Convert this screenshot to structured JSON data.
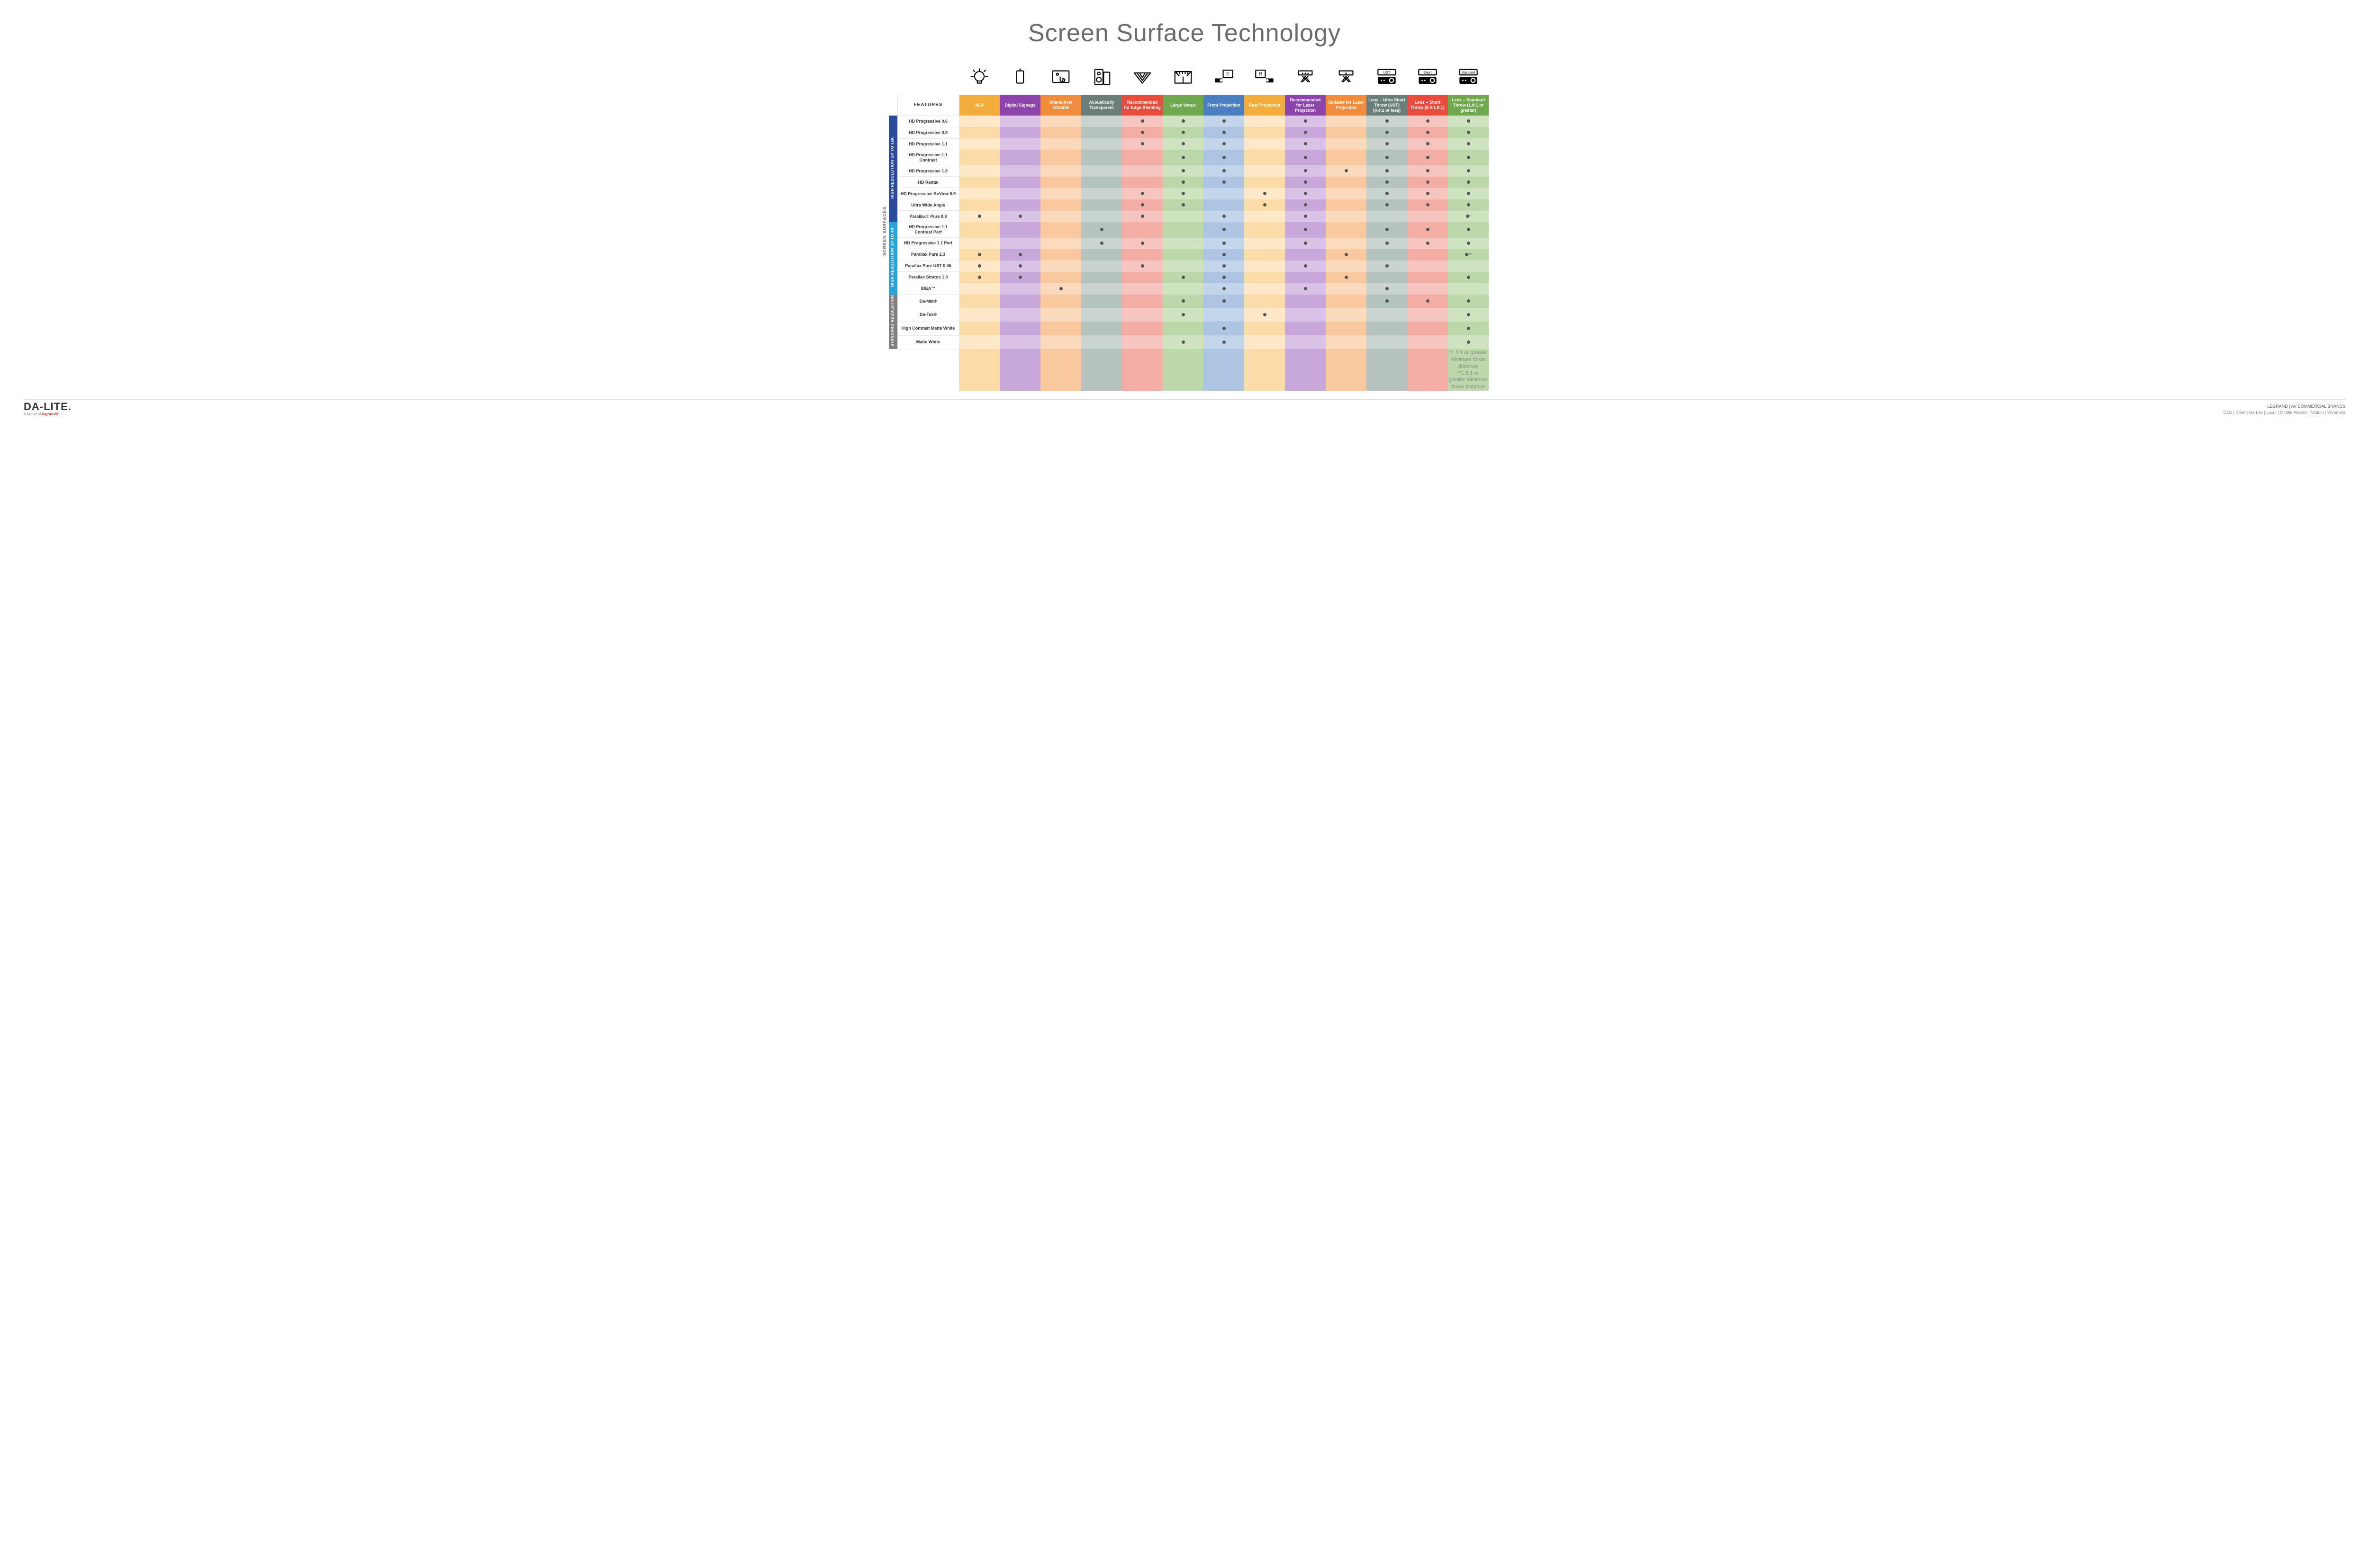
{
  "title": "Screen Surface Technology",
  "features_label": "FEATURES",
  "vertical_label": "SCREEN SURFACES",
  "columns": [
    {
      "key": "alr",
      "label": "ALR",
      "color": "#f3ad3d",
      "icon": "bulb"
    },
    {
      "key": "signage",
      "label": "Digital Signage",
      "color": "#8e44ad",
      "icon": "device"
    },
    {
      "key": "interact",
      "label": "Interactive/ Writable",
      "color": "#f08c3c",
      "icon": "touch"
    },
    {
      "key": "acoustic",
      "label": "Acoustically Transparent",
      "color": "#6b7e7a",
      "icon": "speaker"
    },
    {
      "key": "edge",
      "label": "Recommended for Edge Blending",
      "color": "#e74c3c",
      "icon": "venn"
    },
    {
      "key": "venue",
      "label": "Large Venue",
      "color": "#6fa84f",
      "icon": "stage"
    },
    {
      "key": "front",
      "label": "Front Projection",
      "color": "#4a7fc1",
      "icon": "front"
    },
    {
      "key": "rear",
      "label": "Rear Projection",
      "color": "#f3ad3d",
      "icon": "rear"
    },
    {
      "key": "reclaser",
      "label": "Recommended for Laser Projection",
      "color": "#8e44ad",
      "icon": "laser3"
    },
    {
      "key": "suitlaser",
      "label": "Suitable for Laser Projection",
      "color": "#f08c3c",
      "icon": "laser1"
    },
    {
      "key": "ust",
      "label": "Lens – Ultra Short Throw (UST) (0.4:1 or less)",
      "color": "#6b7e7a",
      "icon": "proj-ust"
    },
    {
      "key": "short",
      "label": "Lens – Short Throw (0.4-1.0:1)",
      "color": "#e74c3c",
      "icon": "proj-short"
    },
    {
      "key": "std",
      "label": "Lens – Standard Throw (1.0:1 or greater)",
      "color": "#6fa84f",
      "icon": "proj-std"
    }
  ],
  "column_tints": {
    "alr": {
      "even": "#fde9c7",
      "odd": "#fbdca8"
    },
    "signage": {
      "even": "#d9c2e6",
      "odd": "#c8a8db"
    },
    "interact": {
      "even": "#fbd9bc",
      "odd": "#f9c89e"
    },
    "acoustic": {
      "even": "#c9d3d0",
      "odd": "#b5c3bf"
    },
    "edge": {
      "even": "#f7c5bf",
      "odd": "#f3ada4"
    },
    "venue": {
      "even": "#cfe3c1",
      "odd": "#bcd7a9"
    },
    "front": {
      "even": "#c3d5eb",
      "odd": "#adc5e2"
    },
    "rear": {
      "even": "#fde9c7",
      "odd": "#fbdca8"
    },
    "reclaser": {
      "even": "#d9c2e6",
      "odd": "#c8a8db"
    },
    "suitlaser": {
      "even": "#fbd9bc",
      "odd": "#f9c89e"
    },
    "ust": {
      "even": "#c9d3d0",
      "odd": "#b5c3bf"
    },
    "short": {
      "even": "#f7c5bf",
      "odd": "#f3ada4"
    },
    "std": {
      "even": "#cfe3c1",
      "odd": "#bcd7a9"
    }
  },
  "categories": [
    {
      "key": "hi16k",
      "label": "HIGH RESOLUTION UP TO 16K",
      "color": "#2b4a9b"
    },
    {
      "key": "hi4k",
      "label": "HIGH RESOLUTION UP TO 4K",
      "color": "#2aa3d9"
    },
    {
      "key": "std",
      "label": "STANDARD RESOLUTION",
      "color": "#808080"
    }
  ],
  "rows": [
    {
      "cat": "hi16k",
      "name": "HD Progressive 0.6",
      "c": {
        "edge": "•",
        "venue": "•",
        "front": "•",
        "reclaser": "•",
        "ust": "•",
        "short": "•",
        "std": "•"
      }
    },
    {
      "cat": "hi16k",
      "name": "HD Progressive 0.9",
      "c": {
        "edge": "•",
        "venue": "•",
        "front": "•",
        "reclaser": "•",
        "ust": "•",
        "short": "•",
        "std": "•"
      }
    },
    {
      "cat": "hi16k",
      "name": "HD Progressive 1.1",
      "c": {
        "edge": "•",
        "venue": "•",
        "front": "•",
        "reclaser": "•",
        "ust": "•",
        "short": "•",
        "std": "•"
      }
    },
    {
      "cat": "hi16k",
      "name": "HD Progressive 1.1 Contrast",
      "c": {
        "venue": "•",
        "front": "•",
        "reclaser": "•",
        "ust": "•",
        "short": "•",
        "std": "•"
      }
    },
    {
      "cat": "hi16k",
      "name": "HD Progressive 1.3",
      "c": {
        "venue": "•",
        "front": "•",
        "reclaser": "•",
        "suitlaser": "•",
        "ust": "•",
        "short": "•",
        "std": "•"
      }
    },
    {
      "cat": "hi16k",
      "name": "HD Rental",
      "c": {
        "venue": "•",
        "front": "•",
        "reclaser": "•",
        "ust": "•",
        "short": "•",
        "std": "•"
      }
    },
    {
      "cat": "hi16k",
      "name": "HD Progressive ReView 0.9",
      "c": {
        "edge": "•",
        "venue": "•",
        "rear": "•",
        "reclaser": "•",
        "ust": "•",
        "short": "•",
        "std": "•"
      }
    },
    {
      "cat": "hi16k",
      "name": "Ultra Wide Angle",
      "c": {
        "edge": "•",
        "venue": "•",
        "rear": "•",
        "reclaser": "•",
        "ust": "•",
        "short": "•",
        "std": "•"
      }
    },
    {
      "cat": "hi16k",
      "name": "Parallax® Pure 0.8",
      "c": {
        "alr": "•",
        "signage": "•",
        "edge": "•",
        "front": "•",
        "reclaser": "•",
        "std": "•*"
      }
    },
    {
      "cat": "hi4k",
      "name": "HD Progressive 1.1 Contrast Perf",
      "c": {
        "acoustic": "•",
        "front": "•",
        "reclaser": "•",
        "ust": "•",
        "short": "•",
        "std": "•"
      }
    },
    {
      "cat": "hi4k",
      "name": "HD Progressive 1.1 Perf",
      "c": {
        "acoustic": "•",
        "edge": "•",
        "front": "•",
        "reclaser": "•",
        "ust": "•",
        "short": "•",
        "std": "•"
      }
    },
    {
      "cat": "hi4k",
      "name": "Parallax Pure 2.3",
      "c": {
        "alr": "•",
        "signage": "•",
        "front": "•",
        "suitlaser": "•",
        "std": "•**"
      }
    },
    {
      "cat": "hi4k",
      "name": "Parallax Pure UST 0.45",
      "c": {
        "alr": "•",
        "signage": "•",
        "edge": "•",
        "front": "•",
        "reclaser": "•",
        "ust": "•"
      }
    },
    {
      "cat": "hi4k",
      "name": "Parallax Stratos 1.0",
      "c": {
        "alr": "•",
        "signage": "•",
        "venue": "•",
        "front": "•",
        "suitlaser": "•",
        "std": "•"
      }
    },
    {
      "cat": "hi4k",
      "name": "IDEA™",
      "c": {
        "interact": "•",
        "front": "•",
        "reclaser": "•",
        "ust": "•"
      }
    },
    {
      "cat": "std",
      "name": "Da-Mat®",
      "c": {
        "venue": "•",
        "front": "•",
        "ust": "•",
        "short": "•",
        "std": "•"
      }
    },
    {
      "cat": "std",
      "name": "Da-Tex®",
      "c": {
        "venue": "•",
        "rear": "•",
        "std": "•"
      }
    },
    {
      "cat": "std",
      "name": "High Contrast Matte White",
      "c": {
        "front": "•",
        "std": "•"
      }
    },
    {
      "cat": "std",
      "name": "Matte White",
      "c": {
        "venue": "•",
        "front": "•",
        "std": "•"
      }
    }
  ],
  "footnotes": [
    "*1.5:1 or greater minimum throw distance",
    "**1.8:1 or greater minimum throw distance"
  ],
  "footer": {
    "logo": "DA-LITE.",
    "tagline_prefix": "A brand of ",
    "tagline_brand": "legrand®",
    "right_title": "LEGRAND | AV COMMERCIAL BRANDS",
    "right_brands": "C2G  |  Chief  |  Da-Lite  |  Luxul  |  Middle Atlantic  |  Vaddio  |  Wiremold"
  }
}
